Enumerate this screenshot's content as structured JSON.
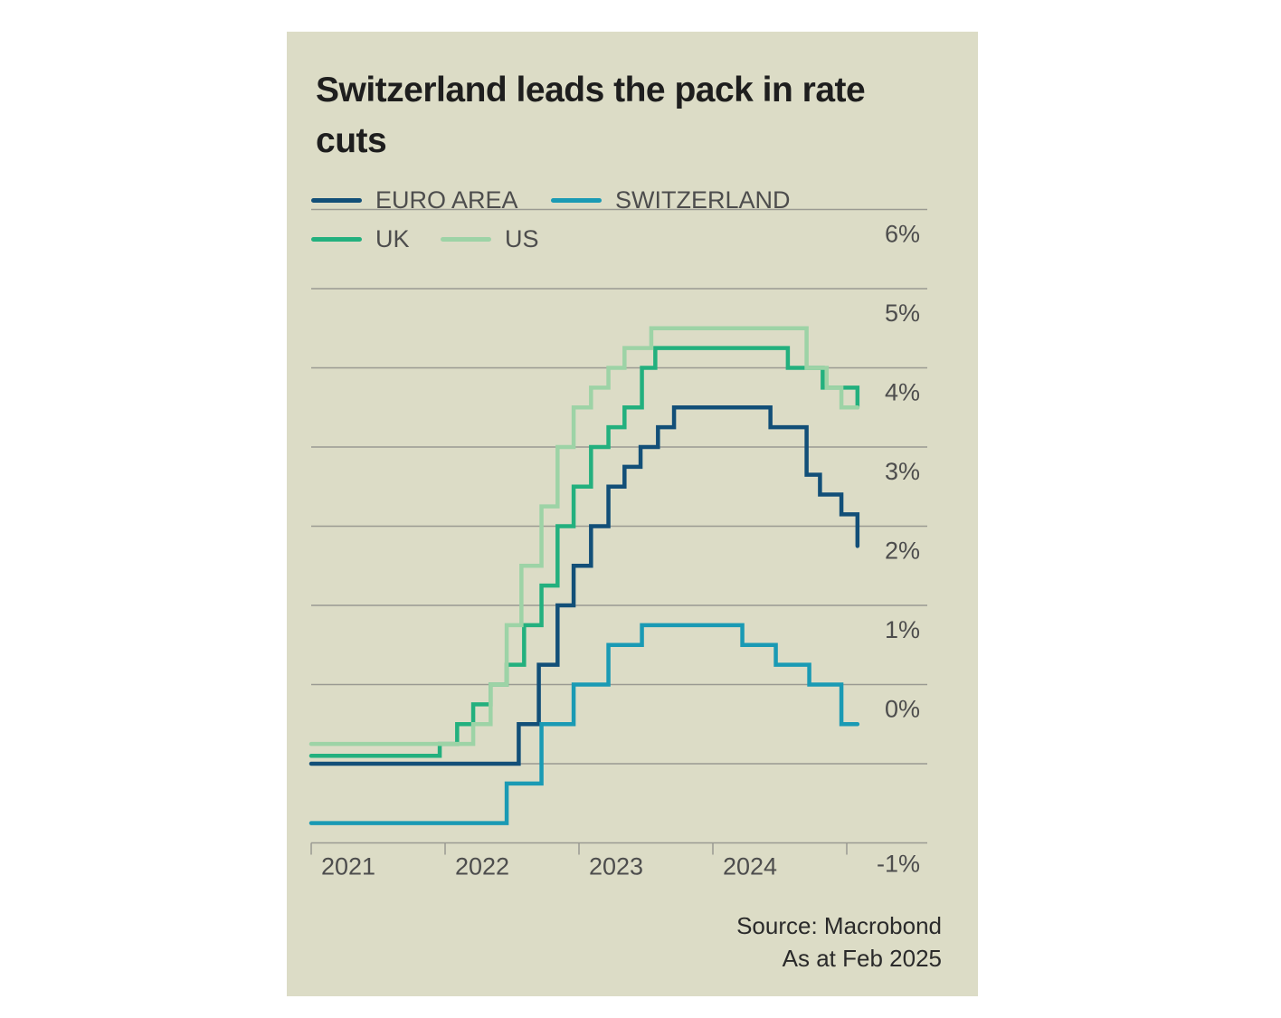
{
  "chart_data": {
    "type": "line",
    "title": "Switzerland leads the pack in rate cuts",
    "xlabel": "",
    "ylabel": "",
    "xlim": [
      2021,
      2025.2
    ],
    "ylim": [
      -1,
      7
    ],
    "y_ticks": [
      {
        "v": 6,
        "label": "6%"
      },
      {
        "v": 5,
        "label": "5%"
      },
      {
        "v": 4,
        "label": "4%"
      },
      {
        "v": 3,
        "label": "3%"
      },
      {
        "v": 2,
        "label": "2%"
      },
      {
        "v": 1,
        "label": "1%"
      },
      {
        "v": 0,
        "label": "0%"
      },
      {
        "v": -1,
        "label": "-1%"
      }
    ],
    "x_ticks": [
      {
        "v": 2021,
        "label": "2021"
      },
      {
        "v": 2022,
        "label": "2022"
      },
      {
        "v": 2023,
        "label": "2023"
      },
      {
        "v": 2024,
        "label": "2024"
      },
      {
        "v": 2025,
        "label": ""
      }
    ],
    "grid": true,
    "legend_position": "top-left",
    "end_x": 2025.08,
    "series": [
      {
        "name": "EURO AREA",
        "color": "#124f78",
        "points": [
          [
            2021,
            0
          ],
          [
            2022.55,
            0.5
          ],
          [
            2022.7,
            1.25
          ],
          [
            2022.84,
            2.0
          ],
          [
            2022.96,
            2.5
          ],
          [
            2023.09,
            3.0
          ],
          [
            2023.22,
            3.5
          ],
          [
            2023.34,
            3.75
          ],
          [
            2023.46,
            4.0
          ],
          [
            2023.59,
            4.25
          ],
          [
            2023.71,
            4.5
          ],
          [
            2024.43,
            4.25
          ],
          [
            2024.7,
            3.65
          ],
          [
            2024.8,
            3.4
          ],
          [
            2024.96,
            3.15
          ],
          [
            2025.08,
            2.75
          ]
        ]
      },
      {
        "name": "SWITZERLAND",
        "color": "#1a9ab4",
        "points": [
          [
            2021,
            -0.75
          ],
          [
            2022.46,
            -0.25
          ],
          [
            2022.72,
            0.5
          ],
          [
            2022.96,
            1.0
          ],
          [
            2023.22,
            1.5
          ],
          [
            2023.47,
            1.75
          ],
          [
            2024.22,
            1.5
          ],
          [
            2024.47,
            1.25
          ],
          [
            2024.72,
            1.0
          ],
          [
            2024.96,
            0.5
          ]
        ]
      },
      {
        "name": "UK",
        "color": "#23b07e",
        "points": [
          [
            2021,
            0.1
          ],
          [
            2021.96,
            0.25
          ],
          [
            2022.09,
            0.5
          ],
          [
            2022.21,
            0.75
          ],
          [
            2022.34,
            1.0
          ],
          [
            2022.46,
            1.25
          ],
          [
            2022.59,
            1.75
          ],
          [
            2022.72,
            2.25
          ],
          [
            2022.84,
            3.0
          ],
          [
            2022.96,
            3.5
          ],
          [
            2023.09,
            4.0
          ],
          [
            2023.22,
            4.25
          ],
          [
            2023.34,
            4.5
          ],
          [
            2023.47,
            5.0
          ],
          [
            2023.57,
            5.25
          ],
          [
            2024.56,
            5.0
          ],
          [
            2024.82,
            4.75
          ],
          [
            2025.08,
            4.5
          ]
        ]
      },
      {
        "name": "US",
        "color": "#9dd3a6",
        "points": [
          [
            2021,
            0.25
          ],
          [
            2022.21,
            0.5
          ],
          [
            2022.34,
            1.0
          ],
          [
            2022.46,
            1.75
          ],
          [
            2022.57,
            2.5
          ],
          [
            2022.72,
            3.25
          ],
          [
            2022.84,
            4.0
          ],
          [
            2022.96,
            4.5
          ],
          [
            2023.09,
            4.75
          ],
          [
            2023.22,
            5.0
          ],
          [
            2023.34,
            5.25
          ],
          [
            2023.54,
            5.5
          ],
          [
            2024.7,
            5.0
          ],
          [
            2024.85,
            4.75
          ],
          [
            2024.96,
            4.5
          ]
        ]
      }
    ],
    "source": "Source: Macrobond",
    "date_note": "As at Feb 2025"
  }
}
